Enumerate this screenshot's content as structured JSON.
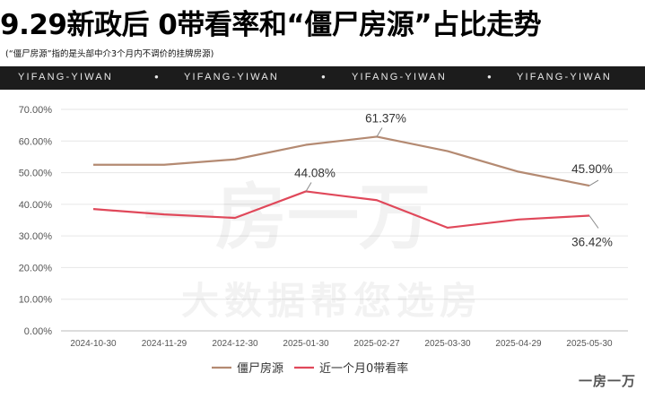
{
  "header": {
    "title": "9.29新政后  0带看率和“僵尸房源”占比走势",
    "subtitle": "(“僵尸房源”指的是头部中介3个月内不调价的挂牌房源)"
  },
  "banner": {
    "items": [
      "YIFANG-YIWAN",
      "●",
      "YIFANG-YIWAN",
      "●",
      "YIFANG-YIWAN",
      "●",
      "YIFANG-YIWAN"
    ]
  },
  "watermark": {
    "brand": "一房一万",
    "slogan": "大数据帮您选房"
  },
  "footer": {
    "logo": "一房一万"
  },
  "colors": {
    "zombie": "#B48A72",
    "zero_visit": "#E0485A",
    "grid": "#e6e6e6",
    "axis_text": "#555555"
  },
  "chart_data": {
    "type": "line",
    "categories": [
      "2024-10-30",
      "2024-11-29",
      "2024-12-30",
      "2025-01-30",
      "2025-02-27",
      "2025-03-30",
      "2025-04-29",
      "2025-05-30"
    ],
    "ylim": [
      0,
      70
    ],
    "yticks": [
      "0.00%",
      "10.00%",
      "20.00%",
      "30.00%",
      "40.00%",
      "50.00%",
      "60.00%",
      "70.00%"
    ],
    "series": [
      {
        "name": "僵尸房源",
        "values": [
          52.5,
          52.5,
          54.2,
          58.8,
          61.37,
          56.8,
          50.3,
          45.9
        ],
        "annotations": [
          {
            "index": 4,
            "label": "61.37%"
          },
          {
            "index": 7,
            "label": "45.90%"
          }
        ]
      },
      {
        "name": "近一个月0带看率",
        "values": [
          38.5,
          36.8,
          35.7,
          44.08,
          41.3,
          32.6,
          35.2,
          36.42
        ],
        "annotations": [
          {
            "index": 3,
            "label": "44.08%"
          },
          {
            "index": 7,
            "label": "36.42%"
          }
        ]
      }
    ],
    "legend_position": "bottom-center",
    "grid": true
  }
}
